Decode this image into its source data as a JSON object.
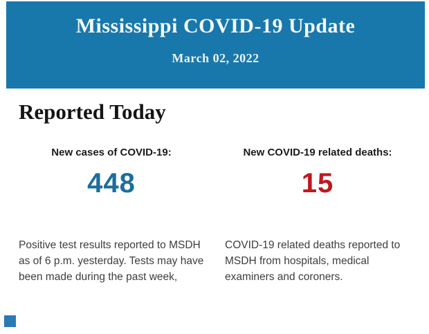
{
  "header": {
    "title": "Mississippi COVID-19 Update",
    "date": "March 02, 2022",
    "background_color": "#1878ab",
    "text_color": "#f5f8f7"
  },
  "main": {
    "section_title": "Reported Today",
    "stats": [
      {
        "label": "New cases of COVID-19:",
        "value": "448",
        "value_color": "#1c6e9d",
        "description": "Positive test results reported to MSDH as of 6 p.m. yesterday. Tests may have been made during the past week,"
      },
      {
        "label": "New COVID-19 related deaths:",
        "value": "15",
        "value_color": "#c0181f",
        "description": "COVID-19 related deaths reported to MSDH from hospitals, medical examiners and coroners."
      }
    ]
  },
  "footer": {
    "partial_element_color": "#2b7ab3"
  }
}
